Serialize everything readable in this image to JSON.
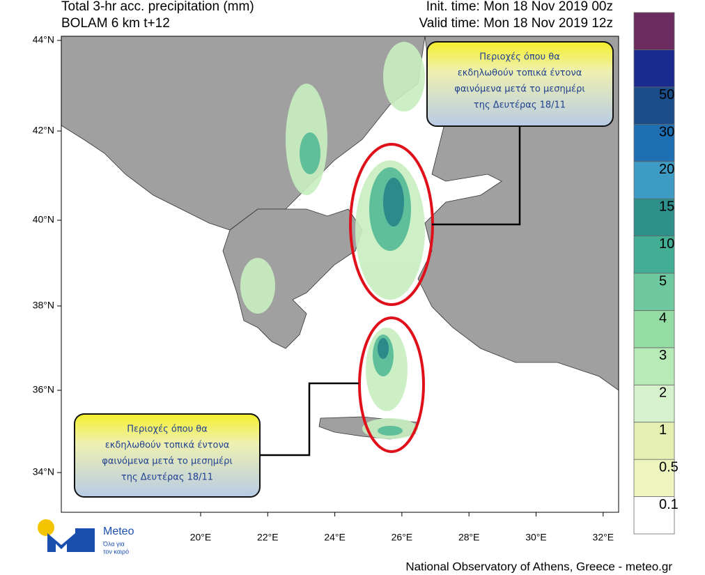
{
  "header": {
    "title": "Total 3-hr acc. precipitation (mm)",
    "model": "BOLAM 6 km t+12",
    "init_time": "Init. time: Mon 18 Nov 2019 00z",
    "valid_time": "Valid time: Mon 18 Nov 2019 12z"
  },
  "latitude_labels": [
    "44°N",
    "42°N",
    "40°N",
    "38°N",
    "36°N",
    "34°N"
  ],
  "longitude_labels": [
    "20°E",
    "22°E",
    "24°E",
    "26°E",
    "28°E",
    "30°E",
    "32°E"
  ],
  "colorbar": {
    "levels": [
      0.1,
      0.5,
      1,
      2,
      3,
      4,
      5,
      10,
      15,
      20,
      30,
      50
    ],
    "colors": [
      "#ffffff",
      "#eef4bd",
      "#e6efb2",
      "#d6f2cc",
      "#b7eab6",
      "#94dca4",
      "#6fc9a0",
      "#44ae94",
      "#2f8f8a",
      "#3e9bc4",
      "#1f6fb3",
      "#1a4d8a",
      "#1b2a8e",
      "#6b2b5e"
    ]
  },
  "callouts": [
    {
      "lines": [
        "Περιοχές όπου θα",
        "εκδηλωθούν τοπικά έντονα",
        "φαινόμενα μετά το μεσημέρι",
        "της Δευτέρας 18/11"
      ]
    },
    {
      "lines": [
        "Περιοχές όπου θα",
        "εκδηλωθούν τοπικά έντονα",
        "φαινόμενα μετά το μεσημέρι",
        "της Δευτέρας 18/11"
      ]
    }
  ],
  "logo": {
    "name": "Meteo",
    "tagline": [
      "Όλα για",
      "τον καιρό"
    ]
  },
  "footer": "National Observatory of Athens, Greece - meteo.gr"
}
